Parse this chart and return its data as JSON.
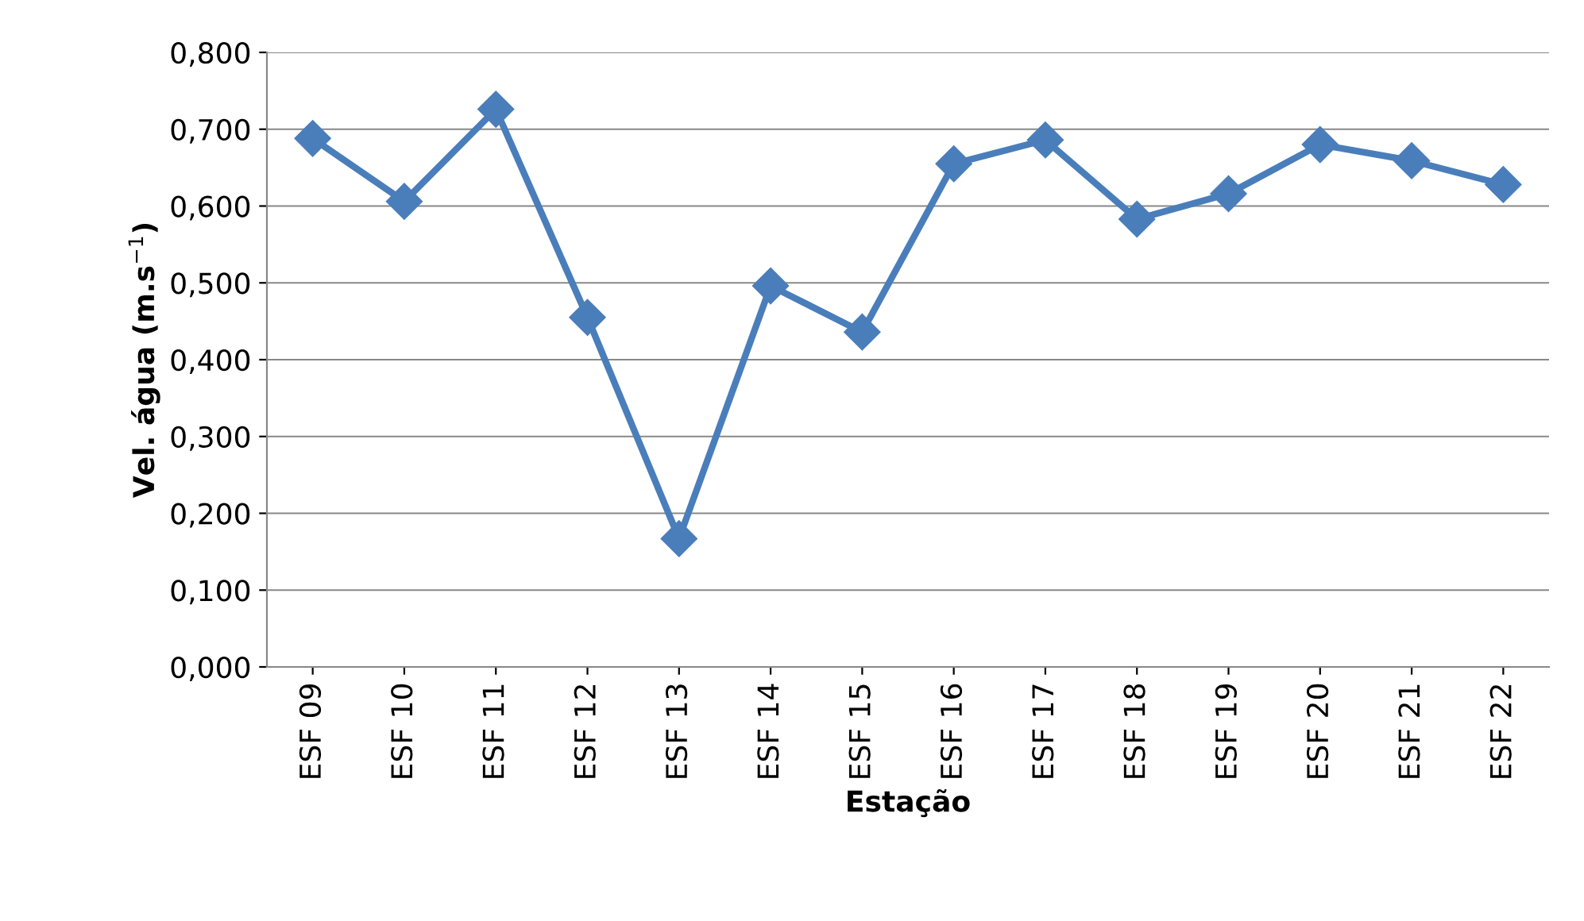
{
  "chart_data": {
    "type": "line",
    "xlabel": "Estação",
    "ylabel": "Vel. água (m.s$^{−1}$)",
    "categories": [
      "ESF 09",
      "ESF 10",
      "ESF 11",
      "ESF 12",
      "ESF 13",
      "ESF 14",
      "ESF 15",
      "ESF 16",
      "ESF 17",
      "ESF 18",
      "ESF 19",
      "ESF 20",
      "ESF 21",
      "ESF 22"
    ],
    "series": [
      {
        "color": "#4a7ebb",
        "values": [
          0.688,
          0.606,
          0.726,
          0.455,
          0.167,
          0.496,
          0.436,
          0.655,
          0.686,
          0.583,
          0.616,
          0.68,
          0.659,
          0.628
        ]
      }
    ],
    "ylim": [
      0,
      0.8
    ],
    "yticks": [
      {
        "value": 0,
        "label": "0,000"
      },
      {
        "value": 0.1,
        "label": "0,100"
      },
      {
        "value": 0.2,
        "label": "0,200"
      },
      {
        "value": 0.3,
        "label": "0,300"
      },
      {
        "value": 0.4,
        "label": "0,400"
      },
      {
        "value": 0.5,
        "label": "0,500"
      },
      {
        "value": 0.6,
        "label": "0,600"
      },
      {
        "value": 0.7,
        "label": "0,700"
      },
      {
        "value": 0.8,
        "label": "0,800"
      }
    ],
    "grid": "y",
    "marker": "diamond",
    "line_style": "solid"
  }
}
